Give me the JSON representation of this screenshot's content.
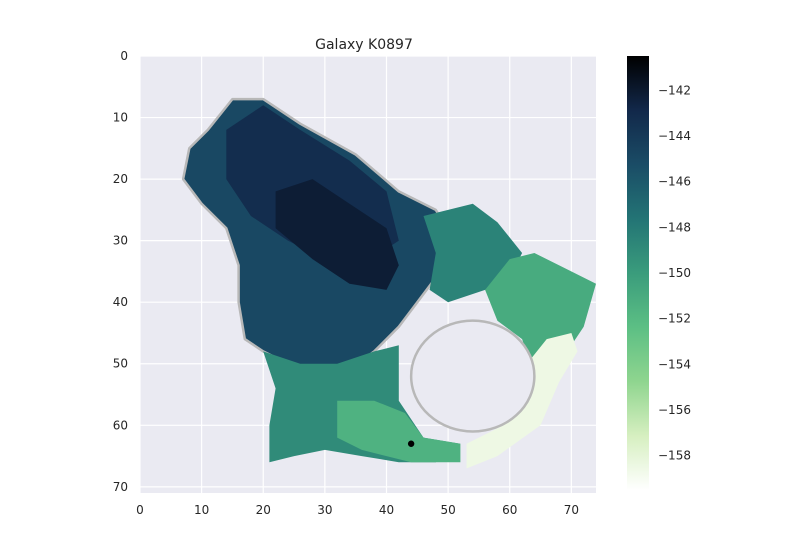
{
  "chart_data": {
    "type": "heatmap",
    "title": "Galaxy K0897",
    "xlabel": "",
    "ylabel": "",
    "xlim": [
      0,
      74
    ],
    "ylim": [
      71,
      0
    ],
    "x_ticks": [
      0,
      10,
      20,
      30,
      40,
      50,
      60,
      70
    ],
    "y_ticks": [
      0,
      10,
      20,
      30,
      40,
      50,
      60,
      70
    ],
    "grid": true,
    "colorbar": {
      "min": -159.5,
      "max": -140.5,
      "ticks": [
        -142,
        -144,
        -146,
        -148,
        -150,
        -152,
        -154,
        -156,
        -158
      ],
      "tick_labels": [
        "−142",
        "−144",
        "−146",
        "−148",
        "−150",
        "−152",
        "−154",
        "−156",
        "−158"
      ],
      "colormap": [
        "#ffffff",
        "#d6efc0",
        "#8fd58f",
        "#5cbf84",
        "#3a9c7c",
        "#237475",
        "#1a4c66",
        "#12284a",
        "#000000"
      ]
    },
    "regions": [
      {
        "value": -145.0,
        "points": [
          [
            11,
            12
          ],
          [
            15,
            7
          ],
          [
            20,
            7
          ],
          [
            26,
            11
          ],
          [
            35,
            16
          ],
          [
            42,
            22
          ],
          [
            48,
            25
          ],
          [
            51,
            30
          ],
          [
            48,
            36
          ],
          [
            45,
            40
          ],
          [
            42,
            44
          ],
          [
            38,
            48
          ],
          [
            34,
            51
          ],
          [
            30,
            52
          ],
          [
            24,
            50
          ],
          [
            20,
            48
          ],
          [
            17,
            46
          ],
          [
            16,
            40
          ],
          [
            16,
            34
          ],
          [
            14,
            28
          ],
          [
            10,
            24
          ],
          [
            7,
            20
          ],
          [
            8,
            15
          ]
        ]
      },
      {
        "value": -143.2,
        "points": [
          [
            14,
            12
          ],
          [
            20,
            8
          ],
          [
            26,
            12
          ],
          [
            34,
            17
          ],
          [
            40,
            22
          ],
          [
            42,
            30
          ],
          [
            36,
            34
          ],
          [
            30,
            33
          ],
          [
            24,
            30
          ],
          [
            18,
            26
          ],
          [
            14,
            20
          ]
        ]
      },
      {
        "value": -142.2,
        "points": [
          [
            22,
            22
          ],
          [
            28,
            20
          ],
          [
            34,
            24
          ],
          [
            40,
            28
          ],
          [
            42,
            34
          ],
          [
            40,
            38
          ],
          [
            34,
            37
          ],
          [
            28,
            33
          ],
          [
            22,
            28
          ]
        ]
      },
      {
        "value": -148.5,
        "points": [
          [
            46,
            26
          ],
          [
            50,
            25
          ],
          [
            54,
            24
          ],
          [
            58,
            27
          ],
          [
            62,
            32
          ],
          [
            60,
            36
          ],
          [
            56,
            38
          ],
          [
            50,
            40
          ],
          [
            47,
            38
          ],
          [
            48,
            32
          ]
        ]
      },
      {
        "value": -151.0,
        "points": [
          [
            56,
            38
          ],
          [
            60,
            33
          ],
          [
            64,
            32
          ],
          [
            68,
            34
          ],
          [
            74,
            37
          ],
          [
            72,
            44
          ],
          [
            68,
            50
          ],
          [
            66,
            54
          ],
          [
            64,
            52
          ],
          [
            62,
            46
          ],
          [
            58,
            43
          ]
        ]
      },
      {
        "value": -149.0,
        "points": [
          [
            20,
            48
          ],
          [
            26,
            50
          ],
          [
            32,
            50
          ],
          [
            38,
            48
          ],
          [
            42,
            47
          ],
          [
            42,
            56
          ],
          [
            46,
            62
          ],
          [
            52,
            63
          ],
          [
            48,
            66
          ],
          [
            42,
            66
          ],
          [
            36,
            65
          ],
          [
            30,
            64
          ],
          [
            25,
            65
          ],
          [
            21,
            66
          ],
          [
            21,
            60
          ],
          [
            22,
            54
          ]
        ]
      },
      {
        "value": -151.5,
        "points": [
          [
            32,
            56
          ],
          [
            38,
            56
          ],
          [
            43,
            58
          ],
          [
            46,
            62
          ],
          [
            52,
            63
          ],
          [
            52,
            66
          ],
          [
            44,
            66
          ],
          [
            36,
            64
          ],
          [
            32,
            62
          ]
        ]
      },
      {
        "value": -158.5,
        "points": [
          [
            62,
            51
          ],
          [
            66,
            46
          ],
          [
            70,
            45
          ],
          [
            71,
            48
          ],
          [
            68,
            53
          ],
          [
            65,
            60
          ],
          [
            58,
            65
          ],
          [
            53,
            67
          ],
          [
            53,
            63
          ],
          [
            59,
            60
          ],
          [
            63,
            56
          ]
        ]
      }
    ],
    "hole": {
      "cx": 54,
      "cy": 52,
      "rx": 10,
      "ry": 9
    },
    "point_marker": {
      "x": 44,
      "y": 63
    }
  }
}
